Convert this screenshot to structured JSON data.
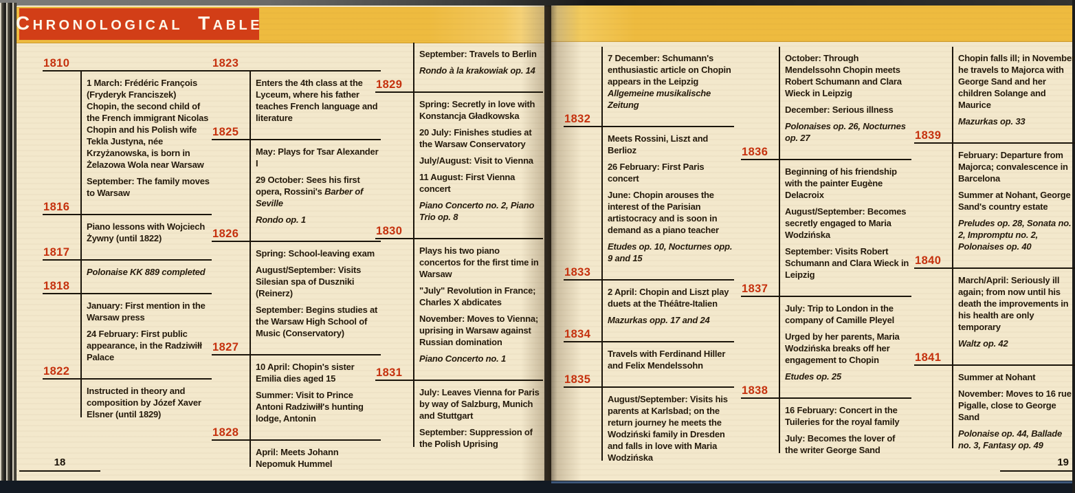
{
  "header": {
    "title_words": [
      "Chronological",
      "Table"
    ]
  },
  "colors": {
    "banner": "#d23e17",
    "band": "#eebb3f",
    "page": "#f3e8cc",
    "year": "#c5310e",
    "text": "#241a0c"
  },
  "pages": [
    {
      "number": "18",
      "columns": [
        {
          "sections": [
            {
              "year": "1810",
              "entries": [
                {
                  "runs": [
                    {
                      "text": "1 March: Frédéric François (Fryderyk Franciszek) Chopin, the second child of the French immigrant Nicolas Chopin and his Polish wife Tekla Justyna, née Krzyżanowska, is born in Żelazowa Wola near Warsaw",
                      "italic": false
                    }
                  ]
                },
                {
                  "runs": [
                    {
                      "text": "September: The family moves to Warsaw",
                      "italic": false
                    }
                  ]
                }
              ]
            },
            {
              "year": "1816",
              "entries": [
                {
                  "runs": [
                    {
                      "text": "Piano lessons with Wojciech Żywny (until 1822)",
                      "italic": false
                    }
                  ]
                }
              ]
            },
            {
              "year": "1817",
              "entries": [
                {
                  "runs": [
                    {
                      "text": "Polonaise KK 889 completed",
                      "italic": true
                    }
                  ]
                }
              ]
            },
            {
              "year": "1818",
              "entries": [
                {
                  "runs": [
                    {
                      "text": "January: First mention in the Warsaw press",
                      "italic": false
                    }
                  ]
                },
                {
                  "runs": [
                    {
                      "text": "24 February: First public appearance, in the Radziwiłł Palace",
                      "italic": false
                    }
                  ]
                }
              ]
            },
            {
              "year": "1822",
              "entries": [
                {
                  "runs": [
                    {
                      "text": "Instructed in theory and composition by Józef Xaver Elsner (until 1829)",
                      "italic": false
                    }
                  ]
                }
              ]
            }
          ]
        },
        {
          "sections": [
            {
              "year": "1823",
              "entries": [
                {
                  "runs": [
                    {
                      "text": "Enters the 4th class at the Lyceum, where his father teaches French language and literature",
                      "italic": false
                    }
                  ]
                }
              ]
            },
            {
              "year": "1825",
              "entries": [
                {
                  "runs": [
                    {
                      "text": "May: Plays for Tsar Alexander I",
                      "italic": false
                    }
                  ]
                },
                {
                  "runs": [
                    {
                      "text": "29 October: Sees his first opera, Rossini's ",
                      "italic": false
                    },
                    {
                      "text": "Barber of Seville",
                      "italic": true
                    }
                  ]
                },
                {
                  "runs": [
                    {
                      "text": "Rondo op. 1",
                      "italic": true
                    }
                  ]
                }
              ]
            },
            {
              "year": "1826",
              "entries": [
                {
                  "runs": [
                    {
                      "text": "Spring: School-leaving exam",
                      "italic": false
                    }
                  ]
                },
                {
                  "runs": [
                    {
                      "text": "August/September: Visits Silesian spa of Duszniki (Reinerz)",
                      "italic": false
                    }
                  ]
                },
                {
                  "runs": [
                    {
                      "text": "September: Begins studies at the Warsaw High School of Music (Conservatory)",
                      "italic": false
                    }
                  ]
                }
              ]
            },
            {
              "year": "1827",
              "entries": [
                {
                  "runs": [
                    {
                      "text": "10 April: Chopin's sister Emilia dies aged 15",
                      "italic": false
                    }
                  ]
                },
                {
                  "runs": [
                    {
                      "text": "Summer: Visit to Prince Antoni Radziwiłł's hunting lodge, Antonin",
                      "italic": false
                    }
                  ]
                }
              ]
            },
            {
              "year": "1828",
              "entries": [
                {
                  "runs": [
                    {
                      "text": "April: Meets Johann Nepomuk Hummel",
                      "italic": false
                    }
                  ]
                }
              ]
            }
          ]
        },
        {
          "sections": [
            {
              "year": null,
              "entries": [
                {
                  "runs": [
                    {
                      "text": "September: Travels to Berlin",
                      "italic": false
                    }
                  ]
                },
                {
                  "runs": [
                    {
                      "text": "Rondo à la krakowiak op. 14",
                      "italic": true
                    }
                  ]
                }
              ]
            },
            {
              "year": "1829",
              "entries": [
                {
                  "runs": [
                    {
                      "text": "Spring: Secretly in love with Konstancja Gładkowska",
                      "italic": false
                    }
                  ]
                },
                {
                  "runs": [
                    {
                      "text": "20 July: Finishes studies at the Warsaw Conservatory",
                      "italic": false
                    }
                  ]
                },
                {
                  "runs": [
                    {
                      "text": "July/August: Visit to Vienna",
                      "italic": false
                    }
                  ]
                },
                {
                  "runs": [
                    {
                      "text": "11 August: First Vienna concert",
                      "italic": false
                    }
                  ]
                },
                {
                  "runs": [
                    {
                      "text": "Piano Concerto no. 2, Piano Trio op. 8",
                      "italic": true
                    }
                  ]
                }
              ]
            },
            {
              "year": "1830",
              "entries": [
                {
                  "runs": [
                    {
                      "text": "Plays his two piano concertos for the first time in Warsaw",
                      "italic": false
                    }
                  ]
                },
                {
                  "runs": [
                    {
                      "text": "\"July\" Revolution in France; Charles X abdicates",
                      "italic": false
                    }
                  ]
                },
                {
                  "runs": [
                    {
                      "text": "November: Moves to Vienna; uprising in Warsaw against Russian domination",
                      "italic": false
                    }
                  ]
                },
                {
                  "runs": [
                    {
                      "text": "Piano Concerto no. 1",
                      "italic": true
                    }
                  ]
                }
              ]
            },
            {
              "year": "1831",
              "entries": [
                {
                  "runs": [
                    {
                      "text": "July: Leaves Vienna for Paris by way of Salzburg, Munich and Stuttgart",
                      "italic": false
                    }
                  ]
                },
                {
                  "runs": [
                    {
                      "text": "September: Suppression of the Polish Uprising",
                      "italic": false
                    }
                  ]
                }
              ]
            }
          ]
        }
      ]
    },
    {
      "number": "19",
      "columns": [
        {
          "sections": [
            {
              "year": null,
              "entries": [
                {
                  "runs": [
                    {
                      "text": "7 December: Schumann's enthusiastic article on Chopin appears in the Leipzig ",
                      "italic": false
                    },
                    {
                      "text": "Allgemeine musikalische Zeitung",
                      "italic": true
                    }
                  ]
                }
              ]
            },
            {
              "year": "1832",
              "entries": [
                {
                  "runs": [
                    {
                      "text": "Meets Rossini, Liszt and Berlioz",
                      "italic": false
                    }
                  ]
                },
                {
                  "runs": [
                    {
                      "text": "26 February: First Paris concert",
                      "italic": false
                    }
                  ]
                },
                {
                  "runs": [
                    {
                      "text": "June: Chopin arouses the interest of the Parisian artistocracy and is soon in demand as a piano teacher",
                      "italic": false
                    }
                  ]
                },
                {
                  "runs": [
                    {
                      "text": "Etudes op. 10, Nocturnes opp. 9 and 15",
                      "italic": true
                    }
                  ]
                }
              ]
            },
            {
              "year": "1833",
              "entries": [
                {
                  "runs": [
                    {
                      "text": "2 April: Chopin and Liszt play duets at the Théâtre-Italien",
                      "italic": false
                    }
                  ]
                },
                {
                  "runs": [
                    {
                      "text": "Mazurkas opp. 17 and 24",
                      "italic": true
                    }
                  ]
                }
              ]
            },
            {
              "year": "1834",
              "entries": [
                {
                  "runs": [
                    {
                      "text": "Travels with Ferdinand Hiller and Felix Mendelssohn",
                      "italic": false
                    }
                  ]
                }
              ]
            },
            {
              "year": "1835",
              "entries": [
                {
                  "runs": [
                    {
                      "text": "August/September: Visits his parents at Karlsbad; on the return journey he meets the Wodziński family in Dresden and falls in love with Maria Wodzińska",
                      "italic": false
                    }
                  ]
                }
              ]
            }
          ]
        },
        {
          "sections": [
            {
              "year": null,
              "entries": [
                {
                  "runs": [
                    {
                      "text": "October: Through Mendelssohn Chopin meets Robert Schumann and Clara Wieck in Leipzig",
                      "italic": false
                    }
                  ]
                },
                {
                  "runs": [
                    {
                      "text": "December: Serious illness",
                      "italic": false
                    }
                  ]
                },
                {
                  "runs": [
                    {
                      "text": "Polonaises op. 26, Nocturnes op. 27",
                      "italic": true
                    }
                  ]
                }
              ]
            },
            {
              "year": "1836",
              "entries": [
                {
                  "runs": [
                    {
                      "text": "Beginning of his friendship with the painter Eugène Delacroix",
                      "italic": false
                    }
                  ]
                },
                {
                  "runs": [
                    {
                      "text": "August/September: Becomes secretly engaged to Maria Wodzińska",
                      "italic": false
                    }
                  ]
                },
                {
                  "runs": [
                    {
                      "text": "September: Visits Robert Schumann and Clara Wieck in Leipzig",
                      "italic": false
                    }
                  ]
                }
              ]
            },
            {
              "year": "1837",
              "entries": [
                {
                  "runs": [
                    {
                      "text": "July: Trip to London in the company of Camille Pleyel",
                      "italic": false
                    }
                  ]
                },
                {
                  "runs": [
                    {
                      "text": "Urged by her parents, Maria Wodzińska breaks off her engagement to Chopin",
                      "italic": false
                    }
                  ]
                },
                {
                  "runs": [
                    {
                      "text": "Etudes op. 25",
                      "italic": true
                    }
                  ]
                }
              ]
            },
            {
              "year": "1838",
              "entries": [
                {
                  "runs": [
                    {
                      "text": "16 February: Concert in the Tuileries for the royal family",
                      "italic": false
                    }
                  ]
                },
                {
                  "runs": [
                    {
                      "text": "July: Becomes the lover of the writer George Sand",
                      "italic": false
                    }
                  ]
                }
              ]
            }
          ]
        },
        {
          "sections": [
            {
              "year": null,
              "entries": [
                {
                  "runs": [
                    {
                      "text": "Chopin falls ill; in November he travels to Majorca with George Sand and her children Solange and Maurice",
                      "italic": false
                    }
                  ]
                },
                {
                  "runs": [
                    {
                      "text": "Mazurkas op. 33",
                      "italic": true
                    }
                  ]
                }
              ]
            },
            {
              "year": "1839",
              "entries": [
                {
                  "runs": [
                    {
                      "text": "February: Departure from Majorca; convalescence in Barcelona",
                      "italic": false
                    }
                  ]
                },
                {
                  "runs": [
                    {
                      "text": "Summer at Nohant, George Sand's country estate",
                      "italic": false
                    }
                  ]
                },
                {
                  "runs": [
                    {
                      "text": "Preludes op. 28, Sonata no. 2, Impromptu no. 2, Polonaises op. 40",
                      "italic": true
                    }
                  ]
                }
              ]
            },
            {
              "year": "1840",
              "entries": [
                {
                  "runs": [
                    {
                      "text": "March/April: Seriously ill again; from now until his death the improvements in his health are only temporary",
                      "italic": false
                    }
                  ]
                },
                {
                  "runs": [
                    {
                      "text": "Waltz op. 42",
                      "italic": true
                    }
                  ]
                }
              ]
            },
            {
              "year": "1841",
              "entries": [
                {
                  "runs": [
                    {
                      "text": "Summer at Nohant",
                      "italic": false
                    }
                  ]
                },
                {
                  "runs": [
                    {
                      "text": "November: Moves to 16 rue Pigalle, close to George Sand",
                      "italic": false
                    }
                  ]
                },
                {
                  "runs": [
                    {
                      "text": "Polonaise op. 44, Ballade no. 3, Fantasy op. 49",
                      "italic": true
                    }
                  ]
                }
              ]
            }
          ]
        }
      ]
    }
  ]
}
